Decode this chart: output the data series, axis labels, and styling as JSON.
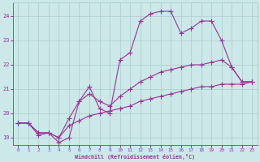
{
  "xlabel": "Windchill (Refroidissement éolien,°C)",
  "ylabel": "",
  "bg_color": "#cce8e8",
  "line_color": "#993399",
  "grid_color": "#aacccc",
  "xlim": [
    -0.5,
    23.5
  ],
  "ylim": [
    18.7,
    24.55
  ],
  "yticks": [
    19,
    20,
    21,
    22,
    23,
    24
  ],
  "xticks": [
    0,
    1,
    2,
    3,
    4,
    5,
    6,
    7,
    8,
    9,
    10,
    11,
    12,
    13,
    14,
    15,
    16,
    17,
    18,
    19,
    20,
    21,
    22,
    23
  ],
  "line1_x": [
    0,
    1,
    2,
    3,
    4,
    5,
    6,
    7,
    8,
    9,
    10,
    11,
    12,
    13,
    14,
    15,
    16,
    17,
    18,
    19,
    20,
    21,
    22,
    23
  ],
  "line1_y": [
    19.6,
    19.6,
    19.1,
    19.2,
    18.8,
    19.0,
    20.5,
    21.1,
    20.2,
    20.0,
    22.2,
    22.5,
    23.8,
    24.1,
    24.2,
    24.2,
    23.3,
    23.5,
    23.8,
    23.8,
    23.0,
    21.9,
    21.3,
    21.3
  ],
  "line2_x": [
    0,
    1,
    2,
    3,
    4,
    5,
    6,
    7,
    8,
    9,
    10,
    11,
    12,
    13,
    14,
    15,
    16,
    17,
    18,
    19,
    20,
    21,
    22,
    23
  ],
  "line2_y": [
    19.6,
    19.6,
    19.2,
    19.2,
    19.0,
    19.8,
    20.5,
    20.8,
    20.5,
    20.3,
    20.7,
    21.0,
    21.3,
    21.5,
    21.7,
    21.8,
    21.9,
    22.0,
    22.0,
    22.1,
    22.2,
    21.9,
    21.3,
    21.3
  ],
  "line3_x": [
    0,
    1,
    2,
    3,
    4,
    5,
    6,
    7,
    8,
    9,
    10,
    11,
    12,
    13,
    14,
    15,
    16,
    17,
    18,
    19,
    20,
    21,
    22,
    23
  ],
  "line3_y": [
    19.6,
    19.6,
    19.2,
    19.2,
    19.0,
    19.5,
    19.7,
    19.9,
    20.0,
    20.1,
    20.2,
    20.3,
    20.5,
    20.6,
    20.7,
    20.8,
    20.9,
    21.0,
    21.1,
    21.1,
    21.2,
    21.2,
    21.2,
    21.3
  ]
}
